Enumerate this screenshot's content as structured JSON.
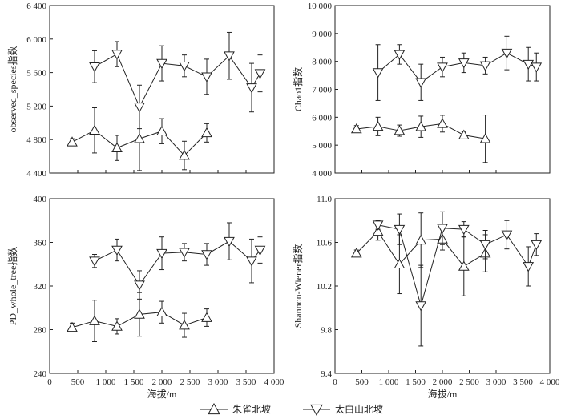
{
  "legend": [
    {
      "series": "s1",
      "label": "朱雀北坡",
      "marker": "triangle-up"
    },
    {
      "series": "s2",
      "label": "太白山北坡",
      "marker": "triangle-down"
    }
  ],
  "chart_data": [
    {
      "type": "line",
      "panel": "top-left",
      "xlabel": "",
      "ylabel": "observed_species指数",
      "xlim": [
        0,
        4000
      ],
      "ylim": [
        4400,
        6400
      ],
      "xticks": [],
      "yticks": [
        4400,
        4800,
        5200,
        5600,
        6000,
        6400
      ],
      "ytick_labels": [
        "4 400",
        "4 800",
        "5 200",
        "5 600",
        "6 000",
        "6 400"
      ],
      "series": [
        {
          "key": "s1",
          "marker": "triangle-up",
          "x": [
            400,
            800,
            1200,
            1600,
            2000,
            2400,
            2800
          ],
          "y": [
            4770,
            4910,
            4700,
            4810,
            4900,
            4610,
            4880
          ],
          "err": [
            40,
            270,
            150,
            380,
            150,
            170,
            110
          ]
        },
        {
          "key": "s2",
          "marker": "triangle-down",
          "x": [
            800,
            1200,
            1600,
            2000,
            2400,
            2800,
            3200,
            3600,
            3750
          ],
          "y": [
            5670,
            5820,
            5190,
            5710,
            5680,
            5550,
            5800,
            5420,
            5590
          ],
          "err": [
            190,
            150,
            260,
            210,
            130,
            210,
            280,
            290,
            220
          ]
        }
      ]
    },
    {
      "type": "line",
      "panel": "top-right",
      "xlabel": "",
      "ylabel": "Chao1指数",
      "xlim": [
        0,
        4000
      ],
      "ylim": [
        4000,
        10000
      ],
      "xticks": [],
      "yticks": [
        4000,
        5000,
        6000,
        7000,
        8000,
        9000,
        10000
      ],
      "ytick_labels": [
        "4 000",
        "5 000",
        "6 000",
        "7 000",
        "8 000",
        "9 000",
        "10 000"
      ],
      "series": [
        {
          "key": "s1",
          "marker": "triangle-up",
          "x": [
            400,
            800,
            1200,
            1600,
            2000,
            2400,
            2800
          ],
          "y": [
            5580,
            5670,
            5520,
            5660,
            5770,
            5360,
            5230
          ],
          "err": [
            120,
            330,
            200,
            380,
            300,
            130,
            850
          ]
        },
        {
          "key": "s2",
          "marker": "triangle-down",
          "x": [
            800,
            1200,
            1600,
            2000,
            2400,
            2800,
            3200,
            3600,
            3750
          ],
          "y": [
            7600,
            8250,
            7250,
            7800,
            7950,
            7850,
            8300,
            7900,
            7800
          ],
          "err": [
            1000,
            350,
            650,
            350,
            350,
            300,
            600,
            600,
            500
          ]
        }
      ]
    },
    {
      "type": "line",
      "panel": "bottom-left",
      "xlabel": "海拔/m",
      "ylabel": "PD_whole_tree指数",
      "xlim": [
        0,
        4000
      ],
      "ylim": [
        240,
        400
      ],
      "xticks": [
        0,
        500,
        1000,
        1500,
        2000,
        2500,
        3000,
        3500,
        4000
      ],
      "xtick_labels": [
        "0",
        "500",
        "1 000",
        "1 500",
        "2 000",
        "2 500",
        "3 000",
        "3 500",
        "4 000"
      ],
      "yticks": [
        240,
        280,
        320,
        360,
        400
      ],
      "ytick_labels": [
        "240",
        "280",
        "320",
        "360",
        "400"
      ],
      "series": [
        {
          "key": "s1",
          "marker": "triangle-up",
          "x": [
            400,
            800,
            1200,
            1600,
            2000,
            2400,
            2800
          ],
          "y": [
            282,
            288,
            283,
            294,
            296,
            284,
            291
          ],
          "err": [
            4,
            19,
            7,
            20,
            10,
            11,
            8
          ]
        },
        {
          "key": "s2",
          "marker": "triangle-down",
          "x": [
            800,
            1200,
            1600,
            2000,
            2400,
            2800,
            3200,
            3600,
            3750
          ],
          "y": [
            343,
            353,
            321,
            350,
            351,
            349,
            361,
            343,
            353
          ],
          "err": [
            6,
            10,
            13,
            15,
            8,
            10,
            17,
            20,
            12
          ]
        }
      ]
    },
    {
      "type": "line",
      "panel": "bottom-right",
      "xlabel": "海拔/m",
      "ylabel": "Shannon-Wiener指数",
      "xlim": [
        0,
        4000
      ],
      "ylim": [
        9.4,
        11.0
      ],
      "xticks": [
        0,
        500,
        1000,
        1500,
        2000,
        2500,
        3000,
        3500,
        4000
      ],
      "xtick_labels": [
        "0",
        "500",
        "1 000",
        "1 500",
        "2 000",
        "2 500",
        "3 000",
        "3 500",
        "4 000"
      ],
      "yticks": [
        9.4,
        9.8,
        10.2,
        10.6,
        11.0
      ],
      "ytick_labels": [
        "9.4",
        "9.8",
        "10.2",
        "10.6",
        "11.0"
      ],
      "series": [
        {
          "key": "s1",
          "marker": "triangle-up",
          "x": [
            400,
            800,
            1200,
            1600,
            2000,
            2400,
            2800
          ],
          "y": [
            10.5,
            10.7,
            10.4,
            10.62,
            10.63,
            10.38,
            10.5
          ],
          "err": [
            0.03,
            0.08,
            0.27,
            0.25,
            0.1,
            0.27,
            0.17
          ]
        },
        {
          "key": "s2",
          "marker": "triangle-down",
          "x": [
            800,
            1200,
            1600,
            2000,
            2400,
            2800,
            3200,
            3600,
            3750
          ],
          "y": [
            10.76,
            10.72,
            10.02,
            10.73,
            10.72,
            10.58,
            10.67,
            10.38,
            10.58
          ],
          "err": [
            0.04,
            0.14,
            0.37,
            0.15,
            0.07,
            0.13,
            0.13,
            0.18,
            0.1
          ]
        }
      ]
    }
  ]
}
